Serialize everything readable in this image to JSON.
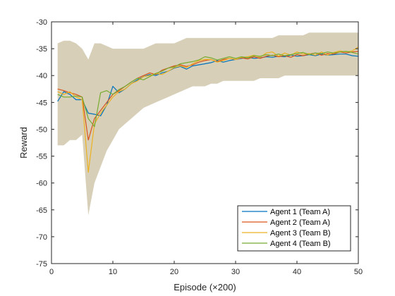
{
  "chart_data": {
    "type": "line",
    "xlabel": "Episode (×200)",
    "ylabel": "Reward",
    "xlim": [
      0,
      50
    ],
    "ylim": [
      -75,
      -30
    ],
    "xticks": [
      0,
      10,
      20,
      30,
      40,
      50
    ],
    "yticks": [
      -75,
      -70,
      -65,
      -60,
      -55,
      -50,
      -45,
      -40,
      -35,
      -30
    ],
    "grid": false,
    "legend_position": "bottom-right",
    "shaded_band": true,
    "x": [
      1,
      2,
      3,
      4,
      5,
      6,
      7,
      8,
      9,
      10,
      11,
      12,
      13,
      14,
      15,
      16,
      17,
      18,
      19,
      20,
      21,
      22,
      23,
      24,
      25,
      26,
      27,
      28,
      29,
      30,
      31,
      32,
      33,
      34,
      35,
      36,
      37,
      38,
      39,
      40,
      41,
      42,
      43,
      44,
      45,
      46,
      47,
      48,
      49,
      50
    ],
    "band": {
      "upper": [
        -34,
        -33.5,
        -33.5,
        -34,
        -35,
        -37,
        -34,
        -34,
        -34.5,
        -35,
        -35,
        -35,
        -35,
        -35,
        -35,
        -34.5,
        -34,
        -34,
        -34,
        -34,
        -33.5,
        -33,
        -33,
        -33,
        -33,
        -33,
        -33,
        -33,
        -33,
        -33,
        -33,
        -33,
        -33,
        -33,
        -33,
        -33,
        -32.5,
        -32.5,
        -32.5,
        -32.5,
        -32.5,
        -32,
        -32,
        -32,
        -32,
        -32,
        -32,
        -32,
        -32,
        -32
      ],
      "lower": [
        -53,
        -53,
        -52,
        -52,
        -51,
        -66,
        -60,
        -57,
        -54,
        -52,
        -50,
        -49,
        -48,
        -47,
        -46,
        -45.5,
        -45,
        -44.5,
        -44,
        -43.5,
        -43,
        -42.5,
        -42,
        -42,
        -42,
        -41.5,
        -41.5,
        -41,
        -41,
        -41,
        -41,
        -41,
        -41,
        -40.5,
        -40.5,
        -40.5,
        -40.5,
        -40,
        -40,
        -40,
        -40,
        -40,
        -40,
        -40,
        -40,
        -40,
        -40,
        -40,
        -40,
        -40
      ]
    },
    "series": [
      {
        "name": "Agent 1 (Team A)",
        "color": "#0072BD",
        "values": [
          -44.8,
          -43,
          -43.5,
          -44.5,
          -44.5,
          -47,
          -47.2,
          -47.5,
          -45.5,
          -42,
          -43.2,
          -42.5,
          -41.5,
          -40.8,
          -40.2,
          -39.8,
          -40,
          -39.5,
          -39.2,
          -38.6,
          -38.3,
          -38.8,
          -38.2,
          -38,
          -37.8,
          -37.6,
          -37.2,
          -37.5,
          -37.2,
          -37,
          -36.8,
          -36.6,
          -36.8,
          -36.7,
          -36.5,
          -36.6,
          -36.4,
          -36.5,
          -36.2,
          -36.4,
          -36.3,
          -36.1,
          -36.3,
          -36,
          -36.2,
          -36.1,
          -36,
          -36,
          -36.3,
          -36.4
        ]
      },
      {
        "name": "Agent 2 (Team A)",
        "color": "#D95319",
        "values": [
          -42.5,
          -42.8,
          -43.2,
          -43.5,
          -44,
          -52,
          -48,
          -46.5,
          -45,
          -43.5,
          -42.8,
          -42,
          -41.2,
          -40.5,
          -40,
          -39.5,
          -39.8,
          -39,
          -38.6,
          -38.2,
          -38,
          -38.3,
          -38,
          -37.5,
          -37.2,
          -37,
          -37.4,
          -37,
          -36.8,
          -37,
          -36.7,
          -36.9,
          -36.5,
          -36.8,
          -36.4,
          -36.2,
          -36.5,
          -36.3,
          -36.6,
          -36.1,
          -36.3,
          -36,
          -35.8,
          -36.2,
          -35.9,
          -36,
          -35.6,
          -35.8,
          -35.6,
          -35.5
        ]
      },
      {
        "name": "Agent 3 (Team B)",
        "color": "#EDB120",
        "values": [
          -43,
          -43.5,
          -43,
          -44,
          -44.5,
          -58,
          -49,
          -47,
          -45.5,
          -44,
          -43,
          -42.5,
          -41.5,
          -41,
          -40.2,
          -40,
          -39.6,
          -39.8,
          -39.2,
          -38.5,
          -38.2,
          -38.5,
          -37.8,
          -37.2,
          -37,
          -37,
          -37.5,
          -37.2,
          -36.8,
          -37,
          -36.6,
          -36.5,
          -36.2,
          -36.6,
          -35.8,
          -35.6,
          -36.4,
          -35.8,
          -36.2,
          -35.6,
          -36,
          -35.9,
          -36.2,
          -35.6,
          -36.2,
          -35.7,
          -35.4,
          -35.6,
          -35.4,
          -34.7
        ]
      },
      {
        "name": "Agent 4 (Team B)",
        "color": "#77AC30",
        "values": [
          -43.5,
          -44,
          -44,
          -43.8,
          -44,
          -48,
          -49.5,
          -43.2,
          -42.8,
          -43.5,
          -42.6,
          -42,
          -41.2,
          -40.5,
          -40.8,
          -40.2,
          -39.6,
          -39.2,
          -38.6,
          -38.4,
          -37.8,
          -37.6,
          -37.4,
          -37.1,
          -36.5,
          -36.7,
          -37.1,
          -36.8,
          -36.5,
          -36.8,
          -36.5,
          -36.7,
          -36.3,
          -36.4,
          -36.1,
          -36.3,
          -36,
          -36.3,
          -36.1,
          -35.9,
          -35.7,
          -36.1,
          -35.8,
          -35.9,
          -35.6,
          -35.8,
          -35.6,
          -35.5,
          -35.7,
          -36
        ]
      }
    ]
  }
}
